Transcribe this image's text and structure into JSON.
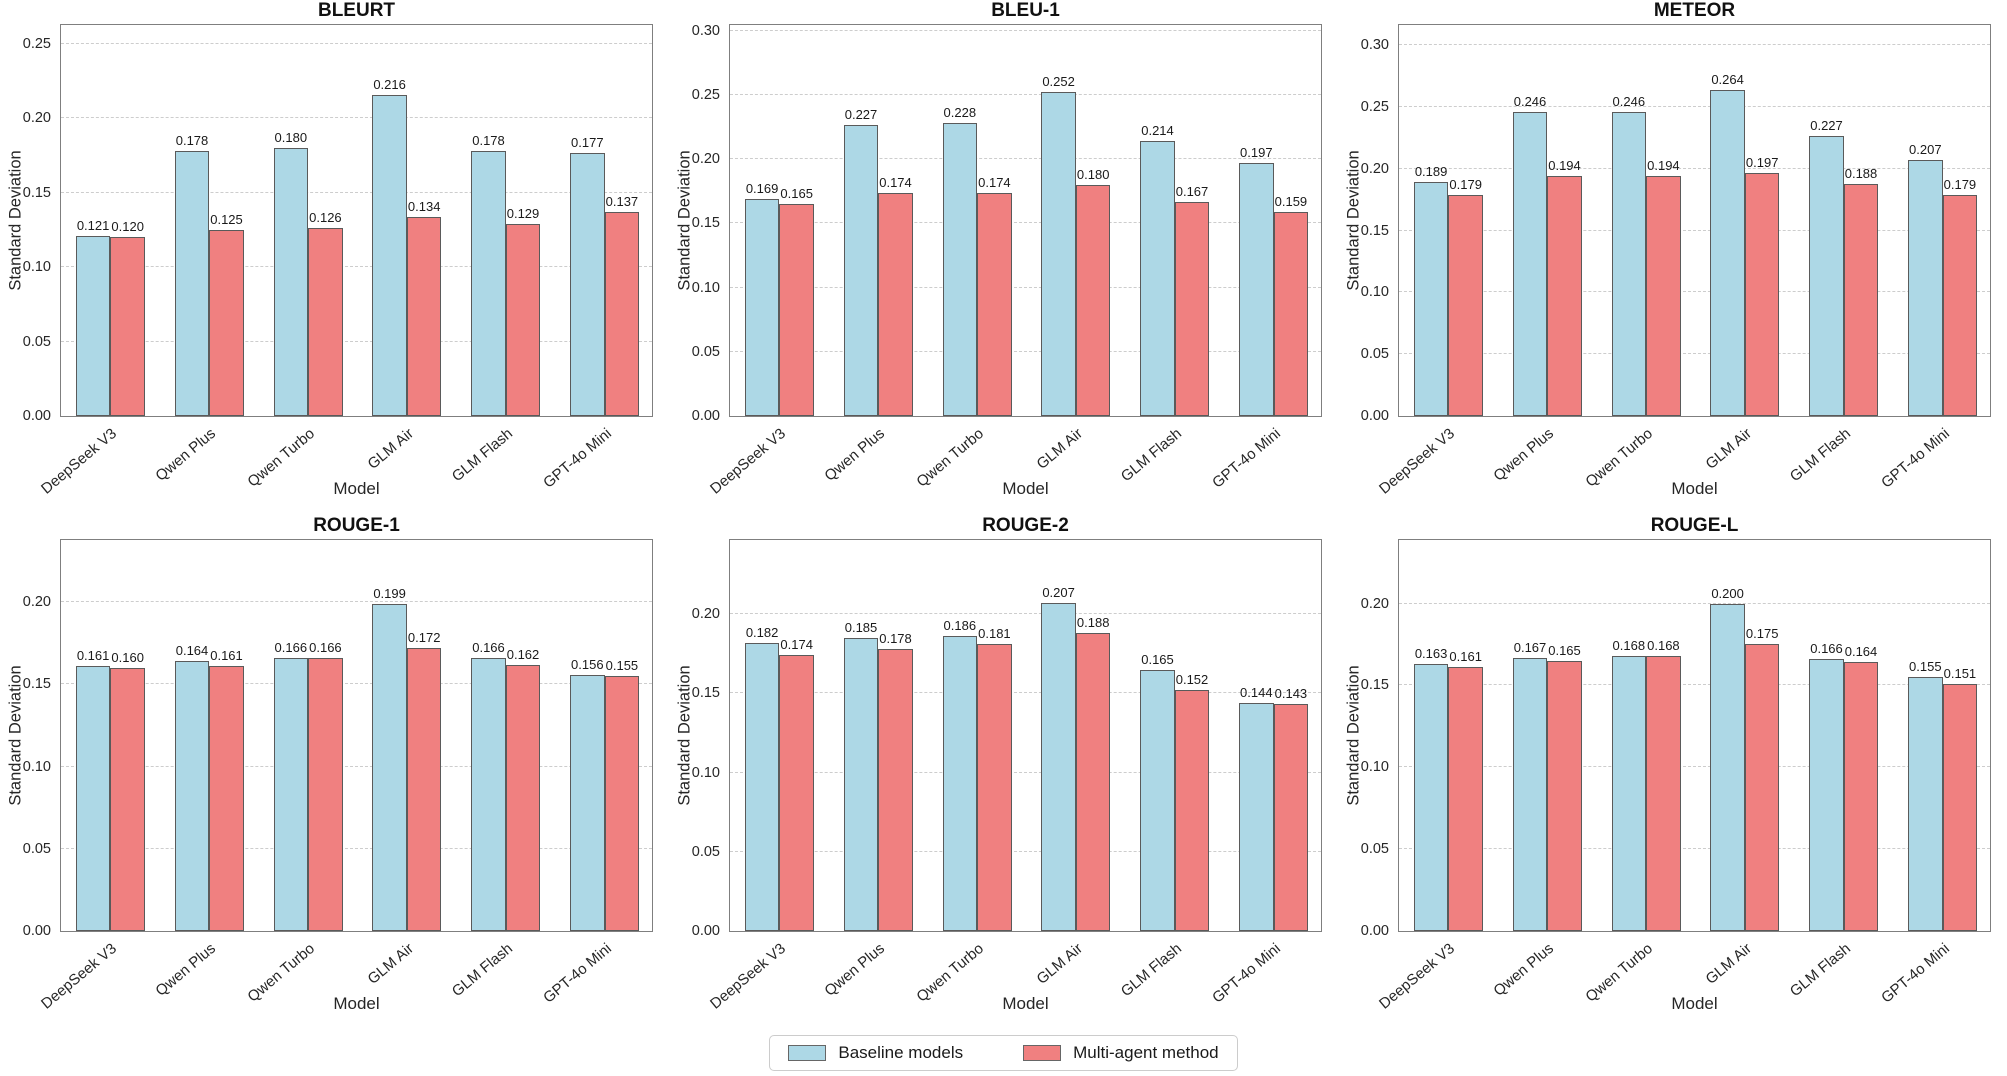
{
  "page": {
    "background": "#ffffff"
  },
  "shared": {
    "ylabel": "Standard Deviation",
    "xlabel": "Model",
    "categories": [
      "DeepSeek V3",
      "Qwen Plus",
      "Qwen Turbo",
      "GLM Air",
      "GLM Flash",
      "GPT-4o Mini"
    ]
  },
  "legend": {
    "items": [
      {
        "label": "Baseline models",
        "color": "#ADD8E6"
      },
      {
        "label": "Multi-agent method",
        "color": "#F08080"
      }
    ],
    "position": "bottom-center"
  },
  "colors": {
    "baseline": "#ADD8E6",
    "multi_agent": "#F08080",
    "bar_edge": "#5a5a5a",
    "grid": "#cdcdcd",
    "spine": "#7f7f7f",
    "text": "#262626"
  },
  "chart_data": [
    {
      "type": "bar",
      "title": "BLEURT",
      "xlabel": "Model",
      "ylabel": "Standard Deviation",
      "categories": [
        "DeepSeek V3",
        "Qwen Plus",
        "Qwen Turbo",
        "GLM Air",
        "GLM Flash",
        "GPT-4o Mini"
      ],
      "series": [
        {
          "name": "Baseline models",
          "values": [
            0.121,
            0.178,
            0.18,
            0.216,
            0.178,
            0.177
          ]
        },
        {
          "name": "Multi-agent method",
          "values": [
            0.12,
            0.125,
            0.126,
            0.134,
            0.129,
            0.137
          ]
        }
      ],
      "ylim": [
        0,
        0.264
      ],
      "yticks": [
        0.0,
        0.05,
        0.1,
        0.15,
        0.2,
        0.25
      ],
      "grid": "horizontal-dashed",
      "value_label_format": "0.000"
    },
    {
      "type": "bar",
      "title": "BLEU-1",
      "xlabel": "Model",
      "ylabel": "Standard Deviation",
      "categories": [
        "DeepSeek V3",
        "Qwen Plus",
        "Qwen Turbo",
        "GLM Air",
        "GLM Flash",
        "GPT-4o Mini"
      ],
      "series": [
        {
          "name": "Baseline models",
          "values": [
            0.169,
            0.227,
            0.228,
            0.252,
            0.214,
            0.197
          ]
        },
        {
          "name": "Multi-agent method",
          "values": [
            0.165,
            0.174,
            0.174,
            0.18,
            0.167,
            0.159
          ]
        }
      ],
      "ylim": [
        0,
        0.306
      ],
      "yticks": [
        0.0,
        0.05,
        0.1,
        0.15,
        0.2,
        0.25,
        0.3
      ],
      "grid": "horizontal-dashed",
      "value_label_format": "0.000"
    },
    {
      "type": "bar",
      "title": "METEOR",
      "xlabel": "Model",
      "ylabel": "Standard Deviation",
      "categories": [
        "DeepSeek V3",
        "Qwen Plus",
        "Qwen Turbo",
        "GLM Air",
        "GLM Flash",
        "GPT-4o Mini"
      ],
      "series": [
        {
          "name": "Baseline models",
          "values": [
            0.189,
            0.246,
            0.246,
            0.264,
            0.227,
            0.207
          ]
        },
        {
          "name": "Multi-agent method",
          "values": [
            0.179,
            0.194,
            0.194,
            0.197,
            0.188,
            0.179
          ]
        }
      ],
      "ylim": [
        0,
        0.318
      ],
      "yticks": [
        0.0,
        0.05,
        0.1,
        0.15,
        0.2,
        0.25,
        0.3
      ],
      "grid": "horizontal-dashed",
      "value_label_format": "0.000"
    },
    {
      "type": "bar",
      "title": "ROUGE-1",
      "xlabel": "Model",
      "ylabel": "Standard Deviation",
      "categories": [
        "DeepSeek V3",
        "Qwen Plus",
        "Qwen Turbo",
        "GLM Air",
        "GLM Flash",
        "GPT-4o Mini"
      ],
      "series": [
        {
          "name": "Baseline models",
          "values": [
            0.161,
            0.164,
            0.166,
            0.199,
            0.166,
            0.156
          ]
        },
        {
          "name": "Multi-agent method",
          "values": [
            0.16,
            0.161,
            0.166,
            0.172,
            0.162,
            0.155
          ]
        }
      ],
      "ylim": [
        0,
        0.239
      ],
      "yticks": [
        0.0,
        0.05,
        0.1,
        0.15,
        0.2
      ],
      "grid": "horizontal-dashed",
      "value_label_format": "0.000"
    },
    {
      "type": "bar",
      "title": "ROUGE-2",
      "xlabel": "Model",
      "ylabel": "Standard Deviation",
      "categories": [
        "DeepSeek V3",
        "Qwen Plus",
        "Qwen Turbo",
        "GLM Air",
        "GLM Flash",
        "GPT-4o Mini"
      ],
      "series": [
        {
          "name": "Baseline models",
          "values": [
            0.182,
            0.185,
            0.186,
            0.207,
            0.165,
            0.144
          ]
        },
        {
          "name": "Multi-agent method",
          "values": [
            0.174,
            0.178,
            0.181,
            0.188,
            0.152,
            0.143
          ]
        }
      ],
      "ylim": [
        0,
        0.248
      ],
      "yticks": [
        0.0,
        0.05,
        0.1,
        0.15,
        0.2
      ],
      "grid": "horizontal-dashed",
      "value_label_format": "0.000"
    },
    {
      "type": "bar",
      "title": "ROUGE-L",
      "xlabel": "Model",
      "ylabel": "Standard Deviation",
      "categories": [
        "DeepSeek V3",
        "Qwen Plus",
        "Qwen Turbo",
        "GLM Air",
        "GLM Flash",
        "GPT-4o Mini"
      ],
      "series": [
        {
          "name": "Baseline models",
          "values": [
            0.163,
            0.167,
            0.168,
            0.2,
            0.166,
            0.155
          ]
        },
        {
          "name": "Multi-agent method",
          "values": [
            0.161,
            0.165,
            0.168,
            0.175,
            0.164,
            0.151
          ]
        }
      ],
      "ylim": [
        0,
        0.24
      ],
      "yticks": [
        0.0,
        0.05,
        0.1,
        0.15,
        0.2
      ],
      "grid": "horizontal-dashed",
      "value_label_format": "0.000"
    }
  ]
}
